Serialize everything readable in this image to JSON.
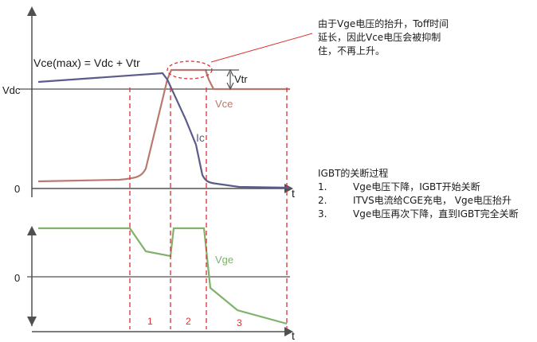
{
  "diagram": {
    "top_plot": {
      "y_labels": {
        "vdc": "Vdc",
        "zero": "0"
      },
      "x_label": "t",
      "formula_label": "Vce(max) = Vdc + Vtr",
      "vtr_label": "Vtr",
      "vce_label": "Vce",
      "ic_label": "Ic"
    },
    "bottom_plot": {
      "y_labels": {
        "zero": "0"
      },
      "x_label": "t",
      "vge_label": "Vge"
    },
    "phases": [
      "1",
      "2",
      "3"
    ],
    "colors": {
      "axis": "#505050",
      "vce": "#b87a6e",
      "ic": "#5b5b8c",
      "vge": "#7fb26b",
      "dashed": "#e03030",
      "text": "#1a1a1a"
    }
  },
  "callout": {
    "line1": "由于Vge电压的抬升，Toff时间",
    "line2": "延长，因此Vce电压会被抑制",
    "line3": "住，不再上升。"
  },
  "process": {
    "title": "IGBT的关断过程",
    "steps": [
      {
        "num": "1.",
        "text": "Vge电压下降，IGBT开始关断"
      },
      {
        "num": "2.",
        "text": "ITVS电流给CGE充电， Vge电压抬升"
      },
      {
        "num": "3.",
        "text": "Vge电压再次下降，直到IGBT完全关断"
      }
    ]
  }
}
